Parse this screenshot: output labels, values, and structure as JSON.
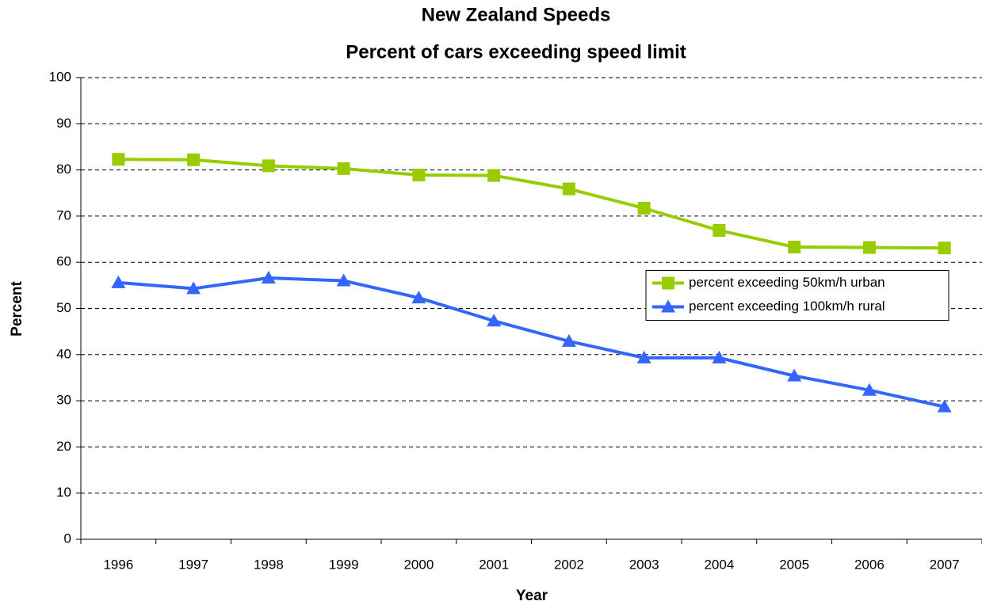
{
  "chart_data": {
    "type": "line",
    "title": "New Zealand Speeds",
    "subtitle": "Percent of cars exceeding speed limit",
    "x_label": "Year",
    "y_label": "Percent",
    "categories": [
      "1996",
      "1997",
      "1998",
      "1999",
      "2000",
      "2001",
      "2002",
      "2003",
      "2004",
      "2005",
      "2006",
      "2007"
    ],
    "series": [
      {
        "name": "percent exceeding 50km/h urban",
        "color": "#99cc00",
        "marker": "square",
        "values": [
          82.3,
          82.2,
          80.9,
          80.3,
          78.9,
          78.8,
          75.9,
          71.7,
          66.9,
          63.3,
          63.2,
          63.1
        ]
      },
      {
        "name": "percent exceeding 100km/h rural",
        "color": "#3366ff",
        "marker": "triangle",
        "values": [
          55.6,
          54.3,
          56.6,
          56.0,
          52.3,
          47.3,
          42.9,
          39.3,
          39.3,
          35.4,
          32.3,
          28.7
        ]
      }
    ],
    "ylim": [
      0,
      100
    ],
    "yticks": [
      0,
      10,
      20,
      30,
      40,
      50,
      60,
      70,
      80,
      90,
      100
    ],
    "grid": true,
    "legend_position": "right"
  }
}
